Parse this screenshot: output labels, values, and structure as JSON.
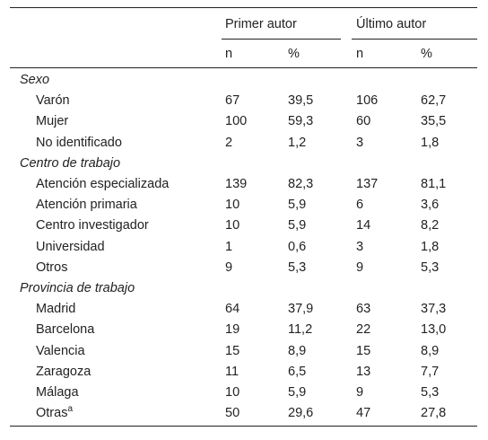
{
  "header": {
    "groups": [
      "Primer autor",
      "Último autor"
    ],
    "subheaders": [
      "n",
      "%",
      "n",
      "%"
    ]
  },
  "sections": [
    {
      "title": "Sexo",
      "rows": [
        {
          "label": "Varón",
          "values": [
            "67",
            "39,5",
            "106",
            "62,7"
          ]
        },
        {
          "label": "Mujer",
          "values": [
            "100",
            "59,3",
            "60",
            "35,5"
          ]
        },
        {
          "label": "No identificado",
          "values": [
            "2",
            "1,2",
            "3",
            "1,8"
          ]
        }
      ]
    },
    {
      "title": "Centro de trabajo",
      "rows": [
        {
          "label": "Atención especializada",
          "values": [
            "139",
            "82,3",
            "137",
            "81,1"
          ]
        },
        {
          "label": "Atención primaria",
          "values": [
            "10",
            "5,9",
            "6",
            "3,6"
          ]
        },
        {
          "label": "Centro investigador",
          "values": [
            "10",
            "5,9",
            "14",
            "8,2"
          ]
        },
        {
          "label": "Universidad",
          "values": [
            "1",
            "0,6",
            "3",
            "1,8"
          ]
        },
        {
          "label": "Otros",
          "values": [
            "9",
            "5,3",
            "9",
            "5,3"
          ]
        }
      ]
    },
    {
      "title": "Provincia de trabajo",
      "rows": [
        {
          "label": "Madrid",
          "values": [
            "64",
            "37,9",
            "63",
            "37,3"
          ]
        },
        {
          "label": "Barcelona",
          "values": [
            "19",
            "11,2",
            "22",
            "13,0"
          ]
        },
        {
          "label": "Valencia",
          "values": [
            "15",
            "8,9",
            "15",
            "8,9"
          ]
        },
        {
          "label": "Zaragoza",
          "values": [
            "11",
            "6,5",
            "13",
            "7,7"
          ]
        },
        {
          "label": "Málaga",
          "values": [
            "10",
            "5,9",
            "9",
            "5,3"
          ]
        },
        {
          "label": "Otras",
          "sup": "a",
          "values": [
            "50",
            "29,6",
            "47",
            "27,8"
          ]
        }
      ]
    }
  ]
}
